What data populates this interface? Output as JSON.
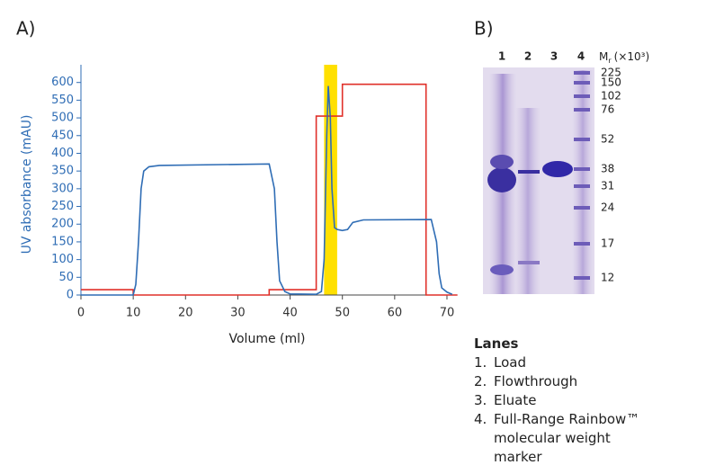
{
  "panel_a": {
    "label": "A)"
  },
  "chart_data": {
    "type": "line",
    "ylabel": "UV absorbance (mAU)",
    "xlabel": "Volume (ml)",
    "xlim": [
      0,
      72
    ],
    "ylim": [
      0,
      650
    ],
    "xticks": [
      0,
      10,
      20,
      30,
      40,
      50,
      60,
      70
    ],
    "yticks": [
      0,
      50,
      100,
      150,
      200,
      250,
      300,
      350,
      400,
      450,
      500,
      550,
      600
    ],
    "highlight": {
      "x": [
        46.5,
        49
      ],
      "color": "#ffe000"
    },
    "series": [
      {
        "name": "UV absorbance",
        "color": "#2f6db5",
        "x": [
          0,
          10,
          10.5,
          11,
          11.5,
          12,
          13,
          15,
          36,
          37,
          37.5,
          38,
          39,
          40,
          45,
          46,
          46.5,
          47,
          47.3,
          47.7,
          48,
          48.5,
          49,
          50,
          51,
          52,
          54,
          67,
          68,
          68.5,
          69,
          70,
          71
        ],
        "values": [
          0,
          0,
          30,
          150,
          300,
          350,
          362,
          366,
          370,
          300,
          150,
          40,
          10,
          3,
          2,
          10,
          100,
          450,
          590,
          500,
          300,
          190,
          185,
          182,
          185,
          205,
          212,
          213,
          150,
          60,
          20,
          8,
          2
        ]
      },
      {
        "name": "Elution step",
        "color": "#e0302a",
        "x": [
          0,
          10,
          10,
          36,
          36,
          45,
          45,
          50,
          50,
          66,
          66,
          72
        ],
        "values": [
          15,
          15,
          0,
          0,
          15,
          15,
          505,
          505,
          595,
          595,
          0,
          0
        ]
      }
    ]
  },
  "panel_b": {
    "label": "B)",
    "lane_numbers": [
      "1",
      "2",
      "3",
      "4"
    ],
    "mr_label": {
      "m": "M",
      "sub": "r",
      "rest": "(×10³)"
    },
    "marker_weights": [
      "225",
      "150",
      "102",
      "76",
      "52",
      "38",
      "31",
      "24",
      "17",
      "12"
    ]
  },
  "lanes": {
    "heading": "Lanes",
    "items": [
      {
        "number": "1.",
        "text": "Load"
      },
      {
        "number": "2.",
        "text": "Flowthrough"
      },
      {
        "number": "3.",
        "text": "Eluate"
      },
      {
        "number": "4.",
        "text": "Full-Range Rainbow™ molecular weight marker"
      }
    ]
  }
}
